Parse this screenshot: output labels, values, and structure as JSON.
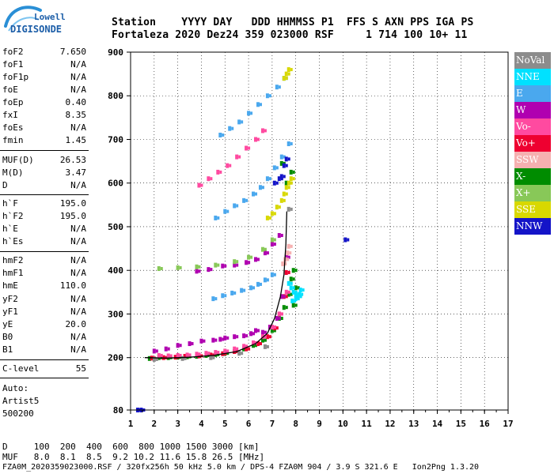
{
  "logo": {
    "top": "Lowell",
    "bottom": "DIGISONDE"
  },
  "header": {
    "line1": "Station    YYYY DAY   DDD HHMMSS P1  FFS S AXN PPS IGA PS",
    "line2": "Fortaleza 2020 Dez24 359 023000 RSF     1 714 100 10+ 11"
  },
  "params_block1": [
    {
      "label": "foF2",
      "value": "7.650"
    },
    {
      "label": "foF1",
      "value": "N/A"
    },
    {
      "label": "foF1p",
      "value": "N/A"
    },
    {
      "label": "foE",
      "value": "N/A"
    },
    {
      "label": "foEp",
      "value": "0.40"
    },
    {
      "label": "fxI",
      "value": "8.35"
    },
    {
      "label": "foEs",
      "value": "N/A"
    },
    {
      "label": "fmin",
      "value": "1.45"
    }
  ],
  "params_block2": [
    {
      "label": "MUF(D)",
      "value": "26.53"
    },
    {
      "label": "M(D)",
      "value": "3.47"
    },
    {
      "label": "D",
      "value": "N/A"
    }
  ],
  "params_block3": [
    {
      "label": "h`F",
      "value": "195.0"
    },
    {
      "label": "h`F2",
      "value": "195.0"
    },
    {
      "label": "h`E",
      "value": "N/A"
    },
    {
      "label": "h`Es",
      "value": "N/A"
    }
  ],
  "params_block4": [
    {
      "label": "hmF2",
      "value": "N/A"
    },
    {
      "label": "hmF1",
      "value": "N/A"
    },
    {
      "label": "hmE",
      "value": "110.0"
    },
    {
      "label": "yF2",
      "value": "N/A"
    },
    {
      "label": "yF1",
      "value": "N/A"
    },
    {
      "label": "yE",
      "value": "20.0"
    },
    {
      "label": "B0",
      "value": "N/A"
    },
    {
      "label": "B1",
      "value": "N/A"
    }
  ],
  "clevel": {
    "label": "C-level",
    "value": "55"
  },
  "autoscale": {
    "line1": "Auto:",
    "line2": "Artist5",
    "line3": "500200"
  },
  "legend": [
    {
      "label": "NoVal",
      "color": "#8c8c8c"
    },
    {
      "label": "NNE",
      "color": "#00e1ff"
    },
    {
      "label": "E",
      "color": "#4aa8ee"
    },
    {
      "label": "W",
      "color": "#b000b0"
    },
    {
      "label": "Vo-",
      "color": "#ff4aa0"
    },
    {
      "label": "Vo+",
      "color": "#ee0030"
    },
    {
      "label": "SSW",
      "color": "#f6b0b0"
    },
    {
      "label": "X-",
      "color": "#008c00"
    },
    {
      "label": "X+",
      "color": "#88c858"
    },
    {
      "label": "SSE",
      "color": "#d8d800"
    },
    {
      "label": "NNW",
      "color": "#1414c8"
    }
  ],
  "footer": {
    "d_line": "D     100  200  400  600  800 1000 1500 3000 [km]",
    "muf_line": "MUF   8.0  8.1  8.5  9.2 10.2 11.6 15.8 26.5 [MHz]",
    "file_line": "FZA0M_2020359023000.RSF / 320fx256h 50 kHz 5.0 km / DPS-4 FZA0M 904 / 3.9 S 321.6 E   Ion2Png 1.3.20"
  },
  "chart_data": {
    "type": "scatter",
    "title": "",
    "xlabel": "",
    "ylabel": "",
    "xlim": [
      1,
      17
    ],
    "ylim": [
      80,
      900
    ],
    "x_ticks": [
      1,
      2,
      3,
      4,
      5,
      6,
      7,
      8,
      9,
      10,
      11,
      12,
      13,
      14,
      15,
      16,
      17
    ],
    "y_ticks": [
      80,
      200,
      300,
      400,
      500,
      600,
      700,
      800,
      900
    ],
    "grid": true,
    "legend_position": "right",
    "trace": {
      "name": "",
      "color": "#000000",
      "x": [
        1.6,
        2.5,
        3.5,
        4.5,
        5.5,
        6.3,
        6.8,
        7.1,
        7.35,
        7.5,
        7.58,
        7.62
      ],
      "y": [
        200,
        199,
        201,
        205,
        214,
        232,
        256,
        290,
        340,
        390,
        460,
        535
      ]
    },
    "series": [
      {
        "name": "X-",
        "color": "#008c00",
        "x": [
          1.8,
          2.2,
          2.6,
          3.0,
          3.4,
          3.8,
          4.2,
          4.6,
          5.0,
          5.4,
          5.8,
          6.2,
          6.6,
          7.0,
          7.3,
          7.5,
          7.7,
          7.8,
          7.9,
          8.0,
          7.9,
          7.6,
          7.4,
          7.8
        ],
        "y": [
          198,
          200,
          200,
          201,
          202,
          203,
          205,
          207,
          210,
          214,
          220,
          228,
          240,
          262,
          290,
          315,
          345,
          380,
          400,
          360,
          320,
          600,
          645,
          625
        ]
      },
      {
        "name": "Vo+",
        "color": "#ee0030",
        "x": [
          1.9,
          2.4,
          2.9,
          3.3,
          3.9,
          4.4,
          4.9,
          5.4,
          5.9,
          6.4,
          6.8,
          7.1,
          7.3,
          7.5,
          7.6
        ],
        "y": [
          199,
          200,
          201,
          203,
          204,
          206,
          209,
          214,
          220,
          232,
          248,
          268,
          300,
          340,
          395
        ]
      },
      {
        "name": "W",
        "color": "#b000b0",
        "x": [
          2.0,
          2.5,
          3.0,
          3.5,
          4.0,
          4.5,
          4.8,
          5.0,
          5.4,
          5.8,
          6.1,
          6.3,
          6.6,
          6.9,
          7.2,
          7.4,
          7.6,
          3.8,
          4.3,
          4.9,
          5.4,
          5.9,
          6.3,
          6.7,
          7.0,
          7.3
        ],
        "y": [
          215,
          220,
          228,
          232,
          238,
          240,
          242,
          245,
          248,
          250,
          255,
          262,
          258,
          270,
          290,
          340,
          430,
          398,
          402,
          410,
          412,
          418,
          425,
          440,
          460,
          480
        ]
      },
      {
        "name": "Vo-",
        "color": "#ff4aa0",
        "x": [
          2.2,
          2.6,
          3.0,
          3.4,
          3.8,
          4.2,
          4.6,
          5.0,
          5.4,
          5.8,
          6.2,
          6.6,
          7.0,
          7.3,
          7.6,
          3.9,
          4.3,
          4.7,
          5.1,
          5.5,
          5.9,
          6.3,
          6.6
        ],
        "y": [
          205,
          204,
          205,
          206,
          208,
          210,
          212,
          215,
          220,
          226,
          234,
          248,
          270,
          300,
          350,
          595,
          610,
          625,
          640,
          660,
          680,
          700,
          720
        ]
      },
      {
        "name": "E",
        "color": "#4aa8ee",
        "x": [
          4.5,
          4.9,
          5.3,
          5.7,
          6.1,
          6.4,
          6.7,
          7.0,
          4.6,
          5.0,
          5.4,
          5.8,
          6.2,
          6.5,
          6.8,
          7.1,
          7.4,
          7.7,
          4.8,
          5.2,
          5.6,
          6.0,
          6.4,
          6.8,
          7.2,
          7.5
        ],
        "y": [
          335,
          342,
          348,
          354,
          360,
          368,
          378,
          390,
          520,
          535,
          548,
          560,
          575,
          590,
          610,
          635,
          660,
          690,
          710,
          725,
          740,
          760,
          780,
          800,
          820,
          840
        ]
      },
      {
        "name": "NNE",
        "color": "#00e1ff",
        "x": [
          7.7,
          7.8,
          7.9,
          8.0,
          8.1,
          8.2,
          7.85,
          8.0,
          8.15
        ],
        "y": [
          370,
          360,
          350,
          345,
          340,
          355,
          330,
          335,
          345
        ]
      },
      {
        "name": "SSE",
        "color": "#d8d800",
        "x": [
          6.8,
          7.0,
          7.2,
          7.4,
          7.5,
          7.6,
          7.7,
          7.8,
          7.5,
          7.6,
          7.7
        ],
        "y": [
          520,
          530,
          545,
          560,
          575,
          590,
          600,
          610,
          840,
          850,
          860
        ]
      },
      {
        "name": "X+",
        "color": "#88c858",
        "x": [
          2.2,
          3.0,
          3.8,
          4.6,
          5.4,
          6.0,
          6.6,
          7.0
        ],
        "y": [
          404,
          406,
          408,
          412,
          420,
          430,
          448,
          470
        ]
      },
      {
        "name": "NNW",
        "color": "#1414c8",
        "x": [
          7.1,
          7.3,
          7.4,
          7.5,
          7.6,
          10.1,
          1.3,
          1.45
        ],
        "y": [
          600,
          610,
          615,
          640,
          655,
          470,
          80,
          80
        ]
      },
      {
        "name": "SSW",
        "color": "#f6b0b0",
        "x": [
          7.45,
          7.55,
          7.65,
          7.7
        ],
        "y": [
          415,
          425,
          440,
          455
        ]
      },
      {
        "name": "NoVal",
        "color": "#8c8c8c",
        "x": [
          2.0,
          3.2,
          4.4,
          5.6,
          6.7,
          7.7
        ],
        "y": [
          196,
          198,
          200,
          210,
          225,
          540
        ]
      }
    ]
  }
}
